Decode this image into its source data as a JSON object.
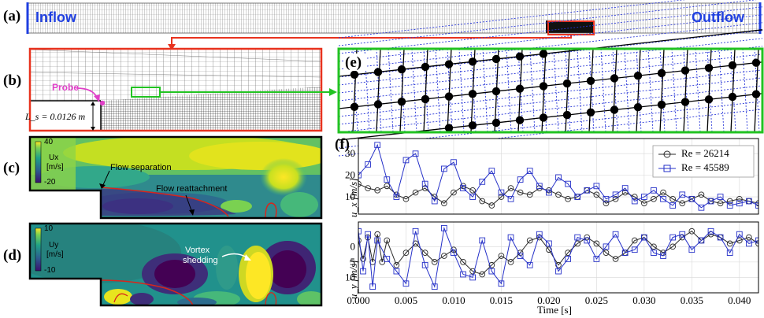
{
  "panels": {
    "a": {
      "label": "(a)",
      "inflow": "Inflow",
      "outflow": "Outflow"
    },
    "b": {
      "label": "(b)",
      "probe": "Probe",
      "step_height": "L_s = 0.0126 m"
    },
    "c": {
      "label": "(c)",
      "cbar_max": "40",
      "cbar_min": "-20",
      "cbar_title": "Ux",
      "cbar_unit": "[m/s]",
      "ann_separation": "Flow separation",
      "ann_reattachment": "Flow reattachment"
    },
    "d": {
      "label": "(d)",
      "cbar_max": "10",
      "cbar_min": "-10",
      "cbar_title": "Uy",
      "cbar_unit": "[m/s]",
      "ann_vortex_1": "Vortex",
      "ann_vortex_2": "shedding"
    },
    "e": {
      "label": "(e)"
    },
    "f": {
      "label": "(f)"
    }
  },
  "colors": {
    "inflow_text": "#1f3fe0",
    "outflow_text": "#1f3fe0",
    "red_box": "#e8321e",
    "green_box": "#22c322",
    "probe": "#e040c8",
    "series_re26214": "#2a2a2a",
    "series_re45589": "#2530c8"
  },
  "chart_data": {
    "type": "line",
    "xlabel": "Time [s]",
    "xlim": [
      0.0,
      0.042
    ],
    "x_ticks": [
      "0.000",
      "0.005",
      "0.010",
      "0.015",
      "0.020",
      "0.025",
      "0.030",
      "0.035",
      "0.040"
    ],
    "legend": [
      "Re = 26214",
      "Re = 45589"
    ],
    "subplots": [
      {
        "ylabel": "u_x [m/s]",
        "ylim": [
          2,
          37
        ],
        "y_ticks": [
          "10",
          "20",
          "30"
        ],
        "series": [
          {
            "name": "Re = 26214",
            "x": [
              0,
              0.001,
              0.002,
              0.003,
              0.004,
              0.005,
              0.006,
              0.007,
              0.008,
              0.009,
              0.01,
              0.011,
              0.012,
              0.013,
              0.014,
              0.015,
              0.016,
              0.017,
              0.018,
              0.019,
              0.02,
              0.021,
              0.022,
              0.023,
              0.024,
              0.025,
              0.026,
              0.027,
              0.028,
              0.029,
              0.03,
              0.031,
              0.032,
              0.033,
              0.034,
              0.035,
              0.036,
              0.037,
              0.038,
              0.039,
              0.04,
              0.041,
              0.042
            ],
            "y": [
              16,
              14,
              13,
              15,
              11,
              9,
              12,
              14,
              10,
              7,
              12,
              15,
              13,
              8,
              6,
              10,
              14,
              12,
              11,
              14,
              13,
              11,
              9,
              10,
              13,
              11,
              7,
              9,
              12,
              10,
              7,
              9,
              12,
              9,
              7,
              9,
              11,
              8,
              7,
              8,
              9,
              8,
              7
            ]
          },
          {
            "name": "Re = 45589",
            "x": [
              0,
              0.001,
              0.002,
              0.003,
              0.004,
              0.005,
              0.006,
              0.007,
              0.008,
              0.009,
              0.01,
              0.011,
              0.012,
              0.013,
              0.014,
              0.015,
              0.016,
              0.017,
              0.018,
              0.019,
              0.02,
              0.021,
              0.022,
              0.023,
              0.024,
              0.025,
              0.026,
              0.027,
              0.028,
              0.029,
              0.03,
              0.031,
              0.032,
              0.033,
              0.034,
              0.035,
              0.036,
              0.037,
              0.038,
              0.039,
              0.04,
              0.041,
              0.042
            ],
            "y": [
              20,
              25,
              34,
              18,
              10,
              27,
              30,
              16,
              8,
              23,
              26,
              14,
              10,
              17,
              22,
              12,
              9,
              18,
              22,
              15,
              12,
              19,
              16,
              10,
              13,
              15,
              9,
              11,
              14,
              8,
              10,
              13,
              9,
              6,
              11,
              9,
              5,
              8,
              10,
              6,
              7,
              8,
              6
            ]
          }
        ]
      },
      {
        "ylabel": "u_y [m/s]",
        "ylim": [
          -15,
          8
        ],
        "y_ticks": [
          "0",
          "5",
          "10"
        ],
        "series": [
          {
            "name": "Re = 26214",
            "x": [
              0,
              0.0005,
              0.001,
              0.0015,
              0.002,
              0.0025,
              0.003,
              0.004,
              0.005,
              0.006,
              0.007,
              0.008,
              0.009,
              0.01,
              0.011,
              0.012,
              0.013,
              0.014,
              0.015,
              0.016,
              0.017,
              0.018,
              0.019,
              0.02,
              0.021,
              0.022,
              0.023,
              0.024,
              0.025,
              0.026,
              0.027,
              0.028,
              0.029,
              0.03,
              0.031,
              0.032,
              0.033,
              0.034,
              0.035,
              0.036,
              0.037,
              0.038,
              0.039,
              0.04,
              0.041,
              0.042
            ],
            "y": [
              2,
              -4,
              3,
              -5,
              4,
              -5,
              2,
              -6,
              -2,
              1,
              -2,
              -5,
              -3,
              -1,
              -5,
              -8,
              -9,
              -6,
              -3,
              -5,
              -2,
              2,
              3,
              -1,
              -6,
              -2,
              1,
              3,
              1,
              -2,
              -4,
              -2,
              2,
              3,
              0,
              -2,
              0,
              3,
              5,
              2,
              4,
              3,
              1,
              2,
              3,
              1
            ]
          },
          {
            "name": "Re = 45589",
            "x": [
              0,
              0.0005,
              0.001,
              0.0015,
              0.002,
              0.003,
              0.004,
              0.005,
              0.006,
              0.007,
              0.008,
              0.009,
              0.01,
              0.011,
              0.012,
              0.013,
              0.014,
              0.015,
              0.016,
              0.017,
              0.018,
              0.019,
              0.02,
              0.021,
              0.022,
              0.023,
              0.024,
              0.025,
              0.026,
              0.027,
              0.028,
              0.029,
              0.03,
              0.031,
              0.032,
              0.033,
              0.034,
              0.035,
              0.036,
              0.037,
              0.038,
              0.039,
              0.04,
              0.041,
              0.042
            ],
            "y": [
              5,
              -8,
              4,
              -13,
              2,
              -4,
              -8,
              -12,
              5,
              -6,
              -13,
              6,
              -2,
              -9,
              -10,
              2,
              -8,
              -12,
              3,
              -3,
              -6,
              4,
              1,
              -8,
              -4,
              3,
              2,
              -4,
              0,
              4,
              -2,
              -1,
              3,
              -2,
              -3,
              3,
              4,
              -1,
              2,
              5,
              3,
              -2,
              4,
              1,
              2
            ]
          }
        ]
      }
    ]
  }
}
